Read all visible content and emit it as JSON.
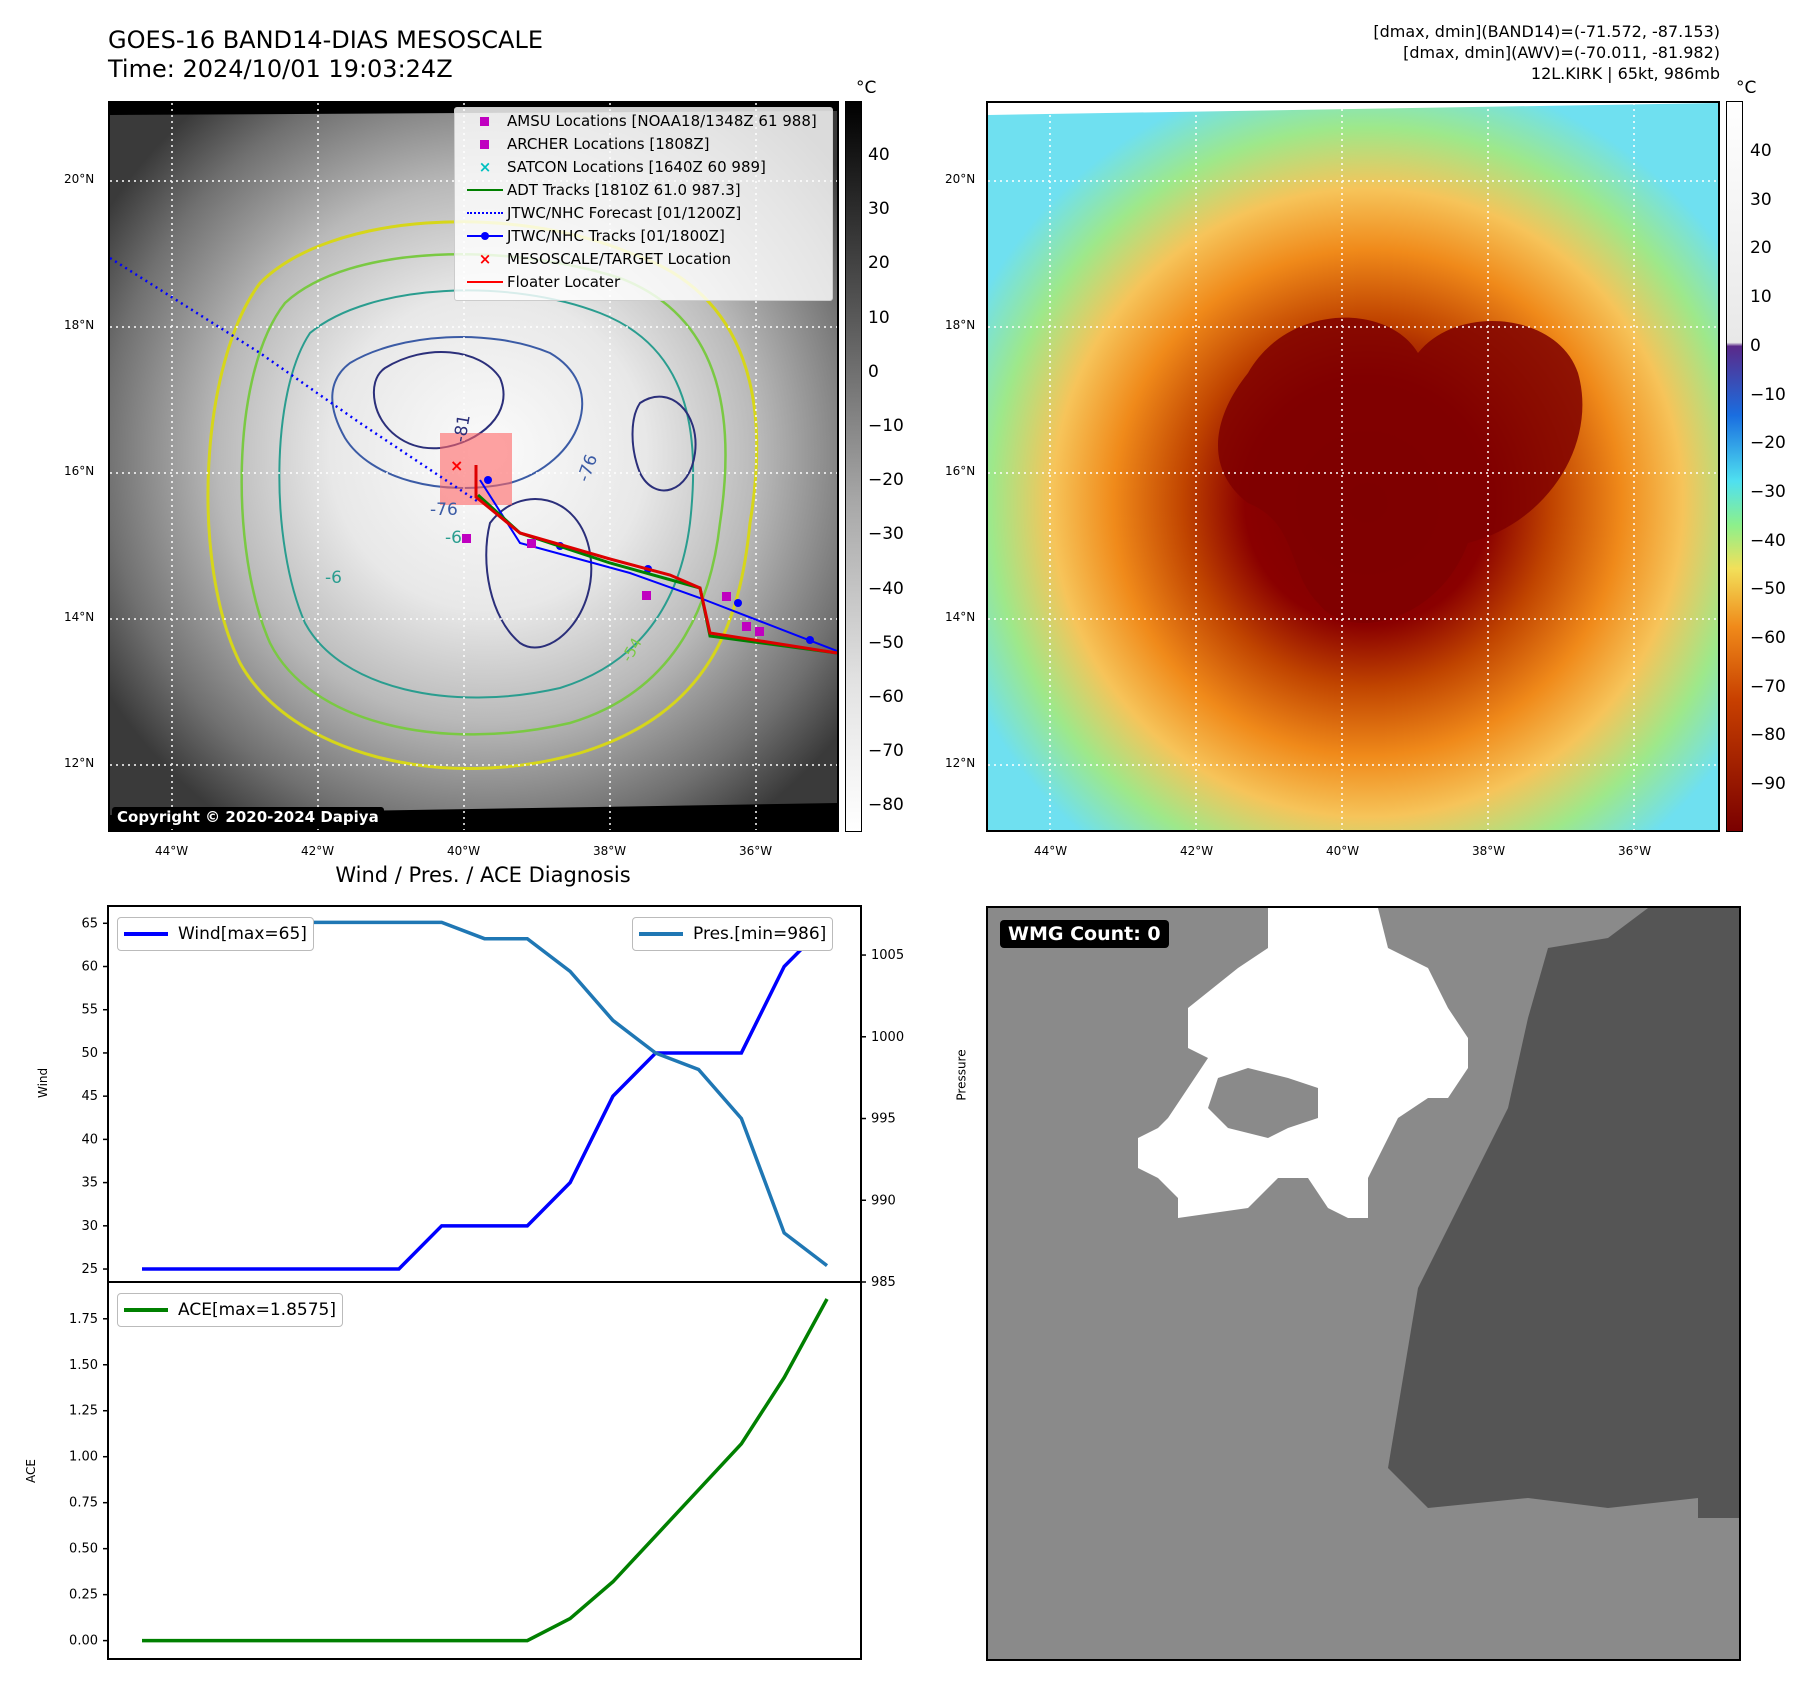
{
  "header": {
    "title_line1": "GOES-16 BAND14-DIAS MESOSCALE",
    "title_line2": "Time: 2024/10/01 19:03:24Z",
    "info_line1": "[dmax, dmin](BAND14)=(-71.572, -87.153)",
    "info_line2": "[dmax, dmin](AWV)=(-70.011, -81.982)",
    "info_line3": "12L.KIRK | 65kt, 986mb"
  },
  "map_axes": {
    "lat_labels": [
      "20°N",
      "18°N",
      "16°N",
      "14°N",
      "12°N"
    ],
    "lon_labels": [
      "44°W",
      "42°W",
      "40°W",
      "38°W",
      "36°W"
    ]
  },
  "ir_panel": {
    "legend": [
      {
        "label": "AMSU Locations [NOAA18/1348Z 61 988]",
        "symbol": "square",
        "color": "#c000c0"
      },
      {
        "label": "ARCHER Locations [1808Z]",
        "symbol": "square",
        "color": "#c000c0"
      },
      {
        "label": "SATCON Locations [1640Z 60 989]",
        "symbol": "x",
        "color": "#00c0c0"
      },
      {
        "label": "ADT Tracks [1810Z 61.0 987.3]",
        "symbol": "line",
        "color": "#008000"
      },
      {
        "label": "JTWC/NHC Forecast [01/1200Z]",
        "symbol": "dotted",
        "color": "#0000ff"
      },
      {
        "label": "JTWC/NHC Tracks [01/1800Z]",
        "symbol": "line-dot",
        "color": "#0000ff"
      },
      {
        "label": "MESOSCALE/TARGET Location",
        "symbol": "x",
        "color": "#ff0000"
      },
      {
        "label": "Floater Locater",
        "symbol": "line",
        "color": "#ff0000"
      }
    ],
    "copyright": "Copyright © 2020-2024 Dapiya",
    "colorbar_unit": "°C",
    "colorbar_ticks": [
      "40",
      "30",
      "20",
      "10",
      "0",
      "−10",
      "−20",
      "−30",
      "−40",
      "−50",
      "−60",
      "−70",
      "−80"
    ],
    "contour_labels": [
      "-81",
      "-76",
      "-76",
      "-6",
      "-54",
      "-6"
    ]
  },
  "wv_panel": {
    "colorbar_unit": "°C",
    "colorbar_ticks": [
      "40",
      "30",
      "20",
      "10",
      "0",
      "−10",
      "−20",
      "−30",
      "−40",
      "−50",
      "−60",
      "−70",
      "−80",
      "−90"
    ]
  },
  "diag_title": "Wind / Pres. / ACE Diagnosis",
  "chart_data": [
    {
      "type": "line",
      "title": "Wind / Pres. / ACE Diagnosis",
      "ylabel": "Wind",
      "ylabel_right": "Pressure",
      "ylim": [
        23.5,
        67
      ],
      "ylim_right": [
        985,
        1008
      ],
      "yticks": [
        25,
        30,
        35,
        40,
        45,
        50,
        55,
        60,
        65
      ],
      "yticks_right": [
        985,
        990,
        995,
        1000,
        1005
      ],
      "series": [
        {
          "name": "Wind[max=65]",
          "color": "#0000ff",
          "axis": "left",
          "values": [
            25,
            25,
            25,
            25,
            25,
            25,
            25,
            30,
            30,
            30,
            35,
            45,
            50,
            50,
            50,
            60,
            65
          ]
        },
        {
          "name": "Pres.[min=986]",
          "color": "#1f77b4",
          "axis": "right",
          "values": [
            1007,
            1007,
            1007,
            1007,
            1007,
            1007,
            1007,
            1007,
            1006,
            1006,
            1004,
            1001,
            999,
            998,
            995,
            988,
            986
          ]
        }
      ]
    },
    {
      "type": "line",
      "ylabel": "ACE",
      "ylim": [
        -0.1,
        1.95
      ],
      "yticks": [
        0.0,
        0.25,
        0.5,
        0.75,
        1.0,
        1.25,
        1.5,
        1.75
      ],
      "ytick_labels": [
        "0.00",
        "0.25",
        "0.50",
        "0.75",
        "1.00",
        "1.25",
        "1.50",
        "1.75"
      ],
      "series": [
        {
          "name": "ACE[max=1.8575]",
          "color": "#008000",
          "values": [
            0,
            0,
            0,
            0,
            0,
            0,
            0,
            0,
            0,
            0,
            0.12,
            0.32,
            0.57,
            0.82,
            1.07,
            1.43,
            1.8575
          ]
        }
      ]
    }
  ],
  "wmg_panel": {
    "label": "WMG Count: 0"
  }
}
